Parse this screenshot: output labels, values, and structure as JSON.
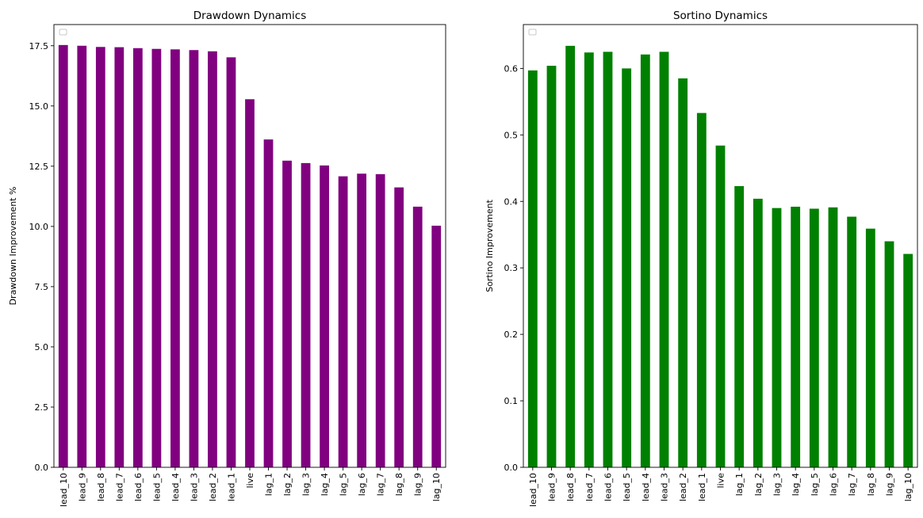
{
  "chart_data": [
    {
      "type": "bar",
      "title": "Drawdown Dynamics",
      "xlabel": "",
      "ylabel": "Drawdown Improvement %",
      "color": "#800080",
      "categories": [
        "lead_10",
        "lead_9",
        "lead_8",
        "lead_7",
        "lead_6",
        "lead_5",
        "lead_4",
        "lead_3",
        "lead_2",
        "lead_1",
        "live",
        "lag_1",
        "lag_2",
        "lag_3",
        "lag_4",
        "lag_5",
        "lag_6",
        "lag_7",
        "lag_8",
        "lag_9",
        "lag_10"
      ],
      "values": [
        17.53,
        17.5,
        17.45,
        17.44,
        17.4,
        17.37,
        17.35,
        17.32,
        17.27,
        17.02,
        15.28,
        13.61,
        12.73,
        12.63,
        12.53,
        12.08,
        12.19,
        12.17,
        11.62,
        10.82,
        10.03
      ],
      "ylim": [
        0,
        18.38
      ],
      "yticks": [
        "0.0",
        "2.5",
        "5.0",
        "7.5",
        "10.0",
        "12.5",
        "15.0",
        "17.5"
      ],
      "ytick_values": [
        0,
        2.5,
        5,
        7.5,
        10,
        12.5,
        15,
        17.5
      ],
      "legend": "top-left",
      "grid": false
    },
    {
      "type": "bar",
      "title": "Sortino Dynamics",
      "xlabel": "",
      "ylabel": "Sortino Improvement",
      "color": "#008000",
      "categories": [
        "lead_10",
        "lead_9",
        "lead_8",
        "lead_7",
        "lead_6",
        "lead_5",
        "lead_4",
        "lead_3",
        "lead_2",
        "lead_1",
        "live",
        "lag_1",
        "lag_2",
        "lag_3",
        "lag_4",
        "lag_5",
        "lag_6",
        "lag_7",
        "lag_8",
        "lag_9",
        "lag_10"
      ],
      "values": [
        0.597,
        0.604,
        0.634,
        0.624,
        0.625,
        0.6,
        0.621,
        0.625,
        0.585,
        0.533,
        0.484,
        0.423,
        0.404,
        0.39,
        0.392,
        0.389,
        0.391,
        0.377,
        0.359,
        0.34,
        0.321
      ],
      "ylim": [
        0,
        0.666
      ],
      "yticks": [
        "0.0",
        "0.1",
        "0.2",
        "0.3",
        "0.4",
        "0.5",
        "0.6"
      ],
      "ytick_values": [
        0,
        0.1,
        0.2,
        0.3,
        0.4,
        0.5,
        0.6
      ],
      "legend": "top-left",
      "grid": false
    }
  ]
}
